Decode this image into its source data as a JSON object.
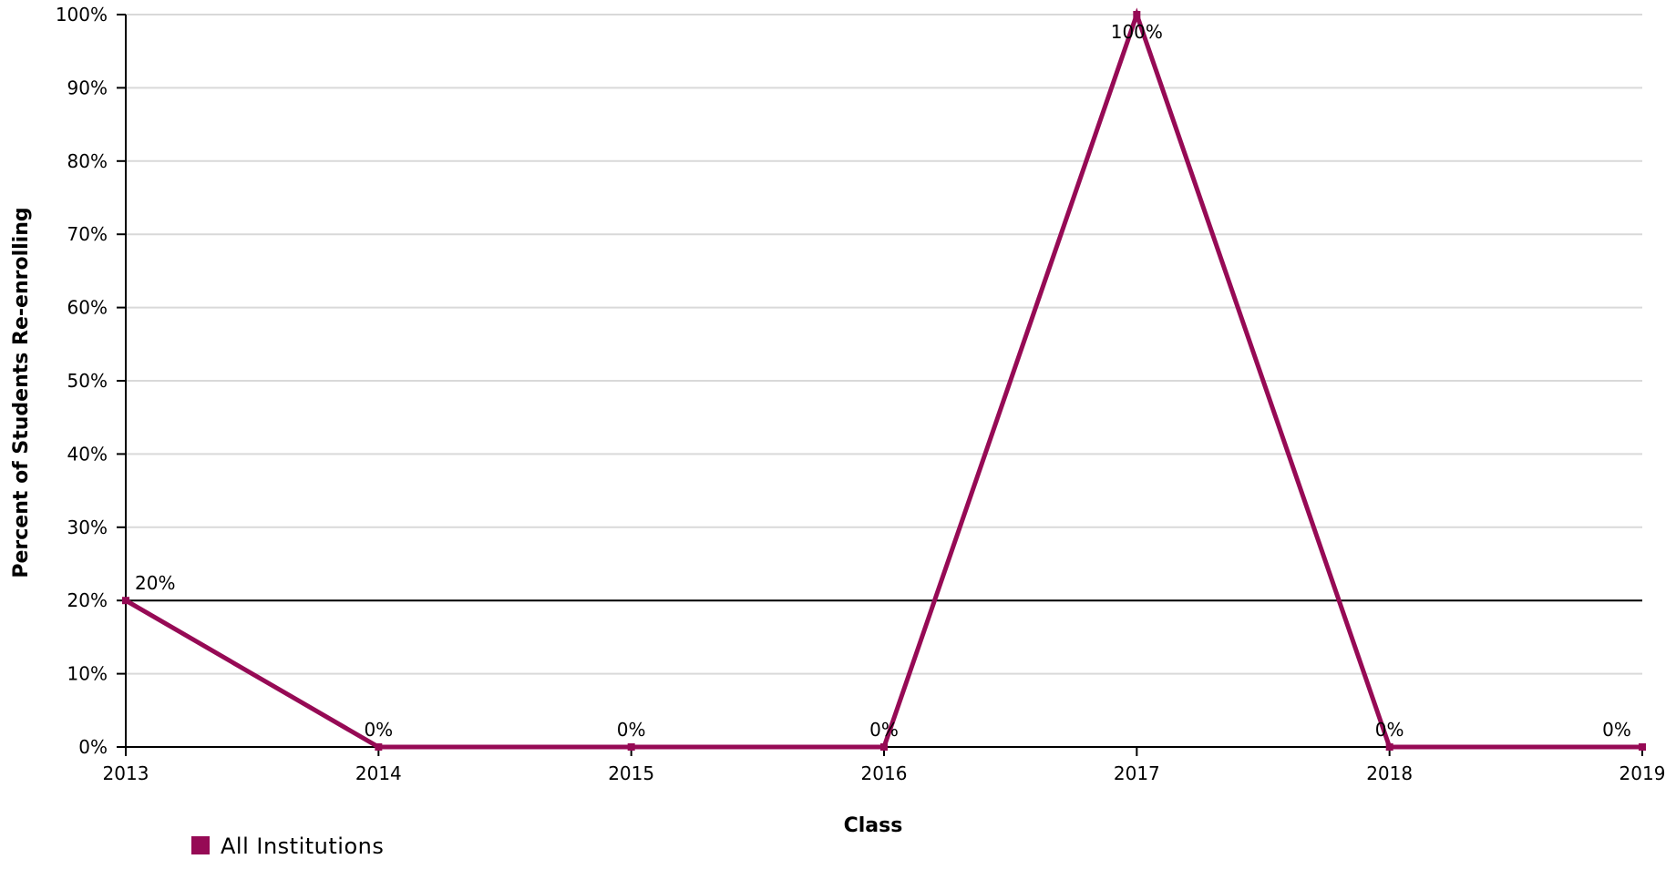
{
  "chart_data": {
    "type": "line",
    "title": "",
    "xlabel": "Class",
    "ylabel": "Percent of Students Re-enrolling",
    "x": [
      2013,
      2014,
      2015,
      2016,
      2017,
      2018,
      2019
    ],
    "xlim": [
      2013,
      2019
    ],
    "ylim": [
      0,
      100
    ],
    "y_ticks": [
      0,
      10,
      20,
      30,
      40,
      50,
      60,
      70,
      80,
      90,
      100
    ],
    "y_tick_labels": [
      "0%",
      "10%",
      "20%",
      "30%",
      "40%",
      "50%",
      "60%",
      "70%",
      "80%",
      "90%",
      "100%"
    ],
    "x_tick_labels": [
      "2013",
      "2014",
      "2015",
      "2016",
      "2017",
      "2018",
      "2019"
    ],
    "grid": true,
    "reference_line": 20,
    "legend_position": "bottom-left",
    "series": [
      {
        "name": "All Institutions",
        "color": "#960a55",
        "values": [
          20,
          0,
          0,
          0,
          100,
          0,
          0
        ],
        "data_labels": [
          "20%",
          "0%",
          "0%",
          "0%",
          "100%",
          "0%",
          "0%"
        ]
      }
    ]
  },
  "colors": {
    "grid": "#d9d9d9",
    "axis": "#000000",
    "series": "#960a55"
  }
}
